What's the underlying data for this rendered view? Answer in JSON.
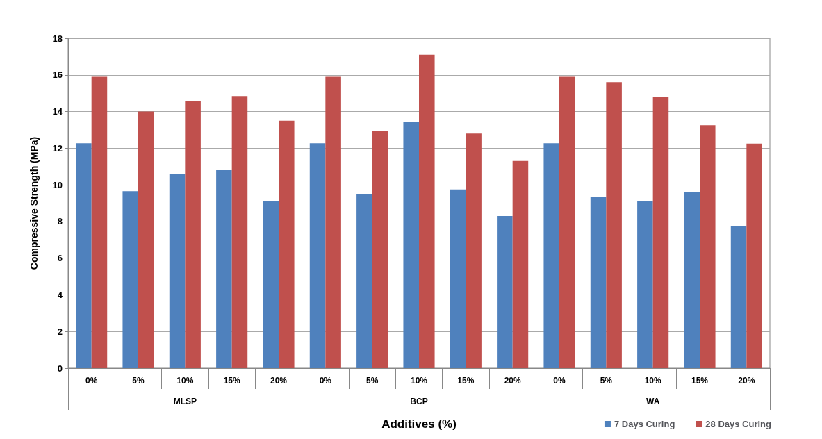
{
  "chart_data": {
    "type": "bar",
    "xlabel": "Additives (%)",
    "ylabel": "Compressive Strength (MPa)",
    "categories": [
      "0%",
      "5%",
      "10%",
      "15%",
      "20%",
      "0%",
      "5%",
      "10%",
      "15%",
      "20%",
      "0%",
      "5%",
      "10%",
      "15%",
      "20%"
    ],
    "annotations": [
      "MLSP",
      "BCP",
      "WA"
    ],
    "series": [
      {
        "name": "7 Days Curing",
        "color": "#4f81bd",
        "values": [
          12.27,
          9.65,
          10.6,
          10.8,
          9.1,
          12.27,
          9.5,
          13.45,
          9.75,
          8.3,
          12.27,
          9.35,
          9.1,
          9.6,
          7.75
        ]
      },
      {
        "name": "28 Days Curing",
        "color": "#c0504d",
        "values": [
          15.9,
          14.0,
          14.55,
          14.85,
          13.5,
          15.9,
          12.95,
          17.1,
          12.8,
          11.3,
          15.9,
          15.6,
          14.8,
          13.25,
          12.25
        ]
      }
    ],
    "ylim": [
      0,
      18
    ],
    "yticks": [
      0,
      2,
      4,
      6,
      8,
      10,
      12,
      14,
      16,
      18
    ],
    "grid": "y",
    "legend": "bottom right"
  }
}
